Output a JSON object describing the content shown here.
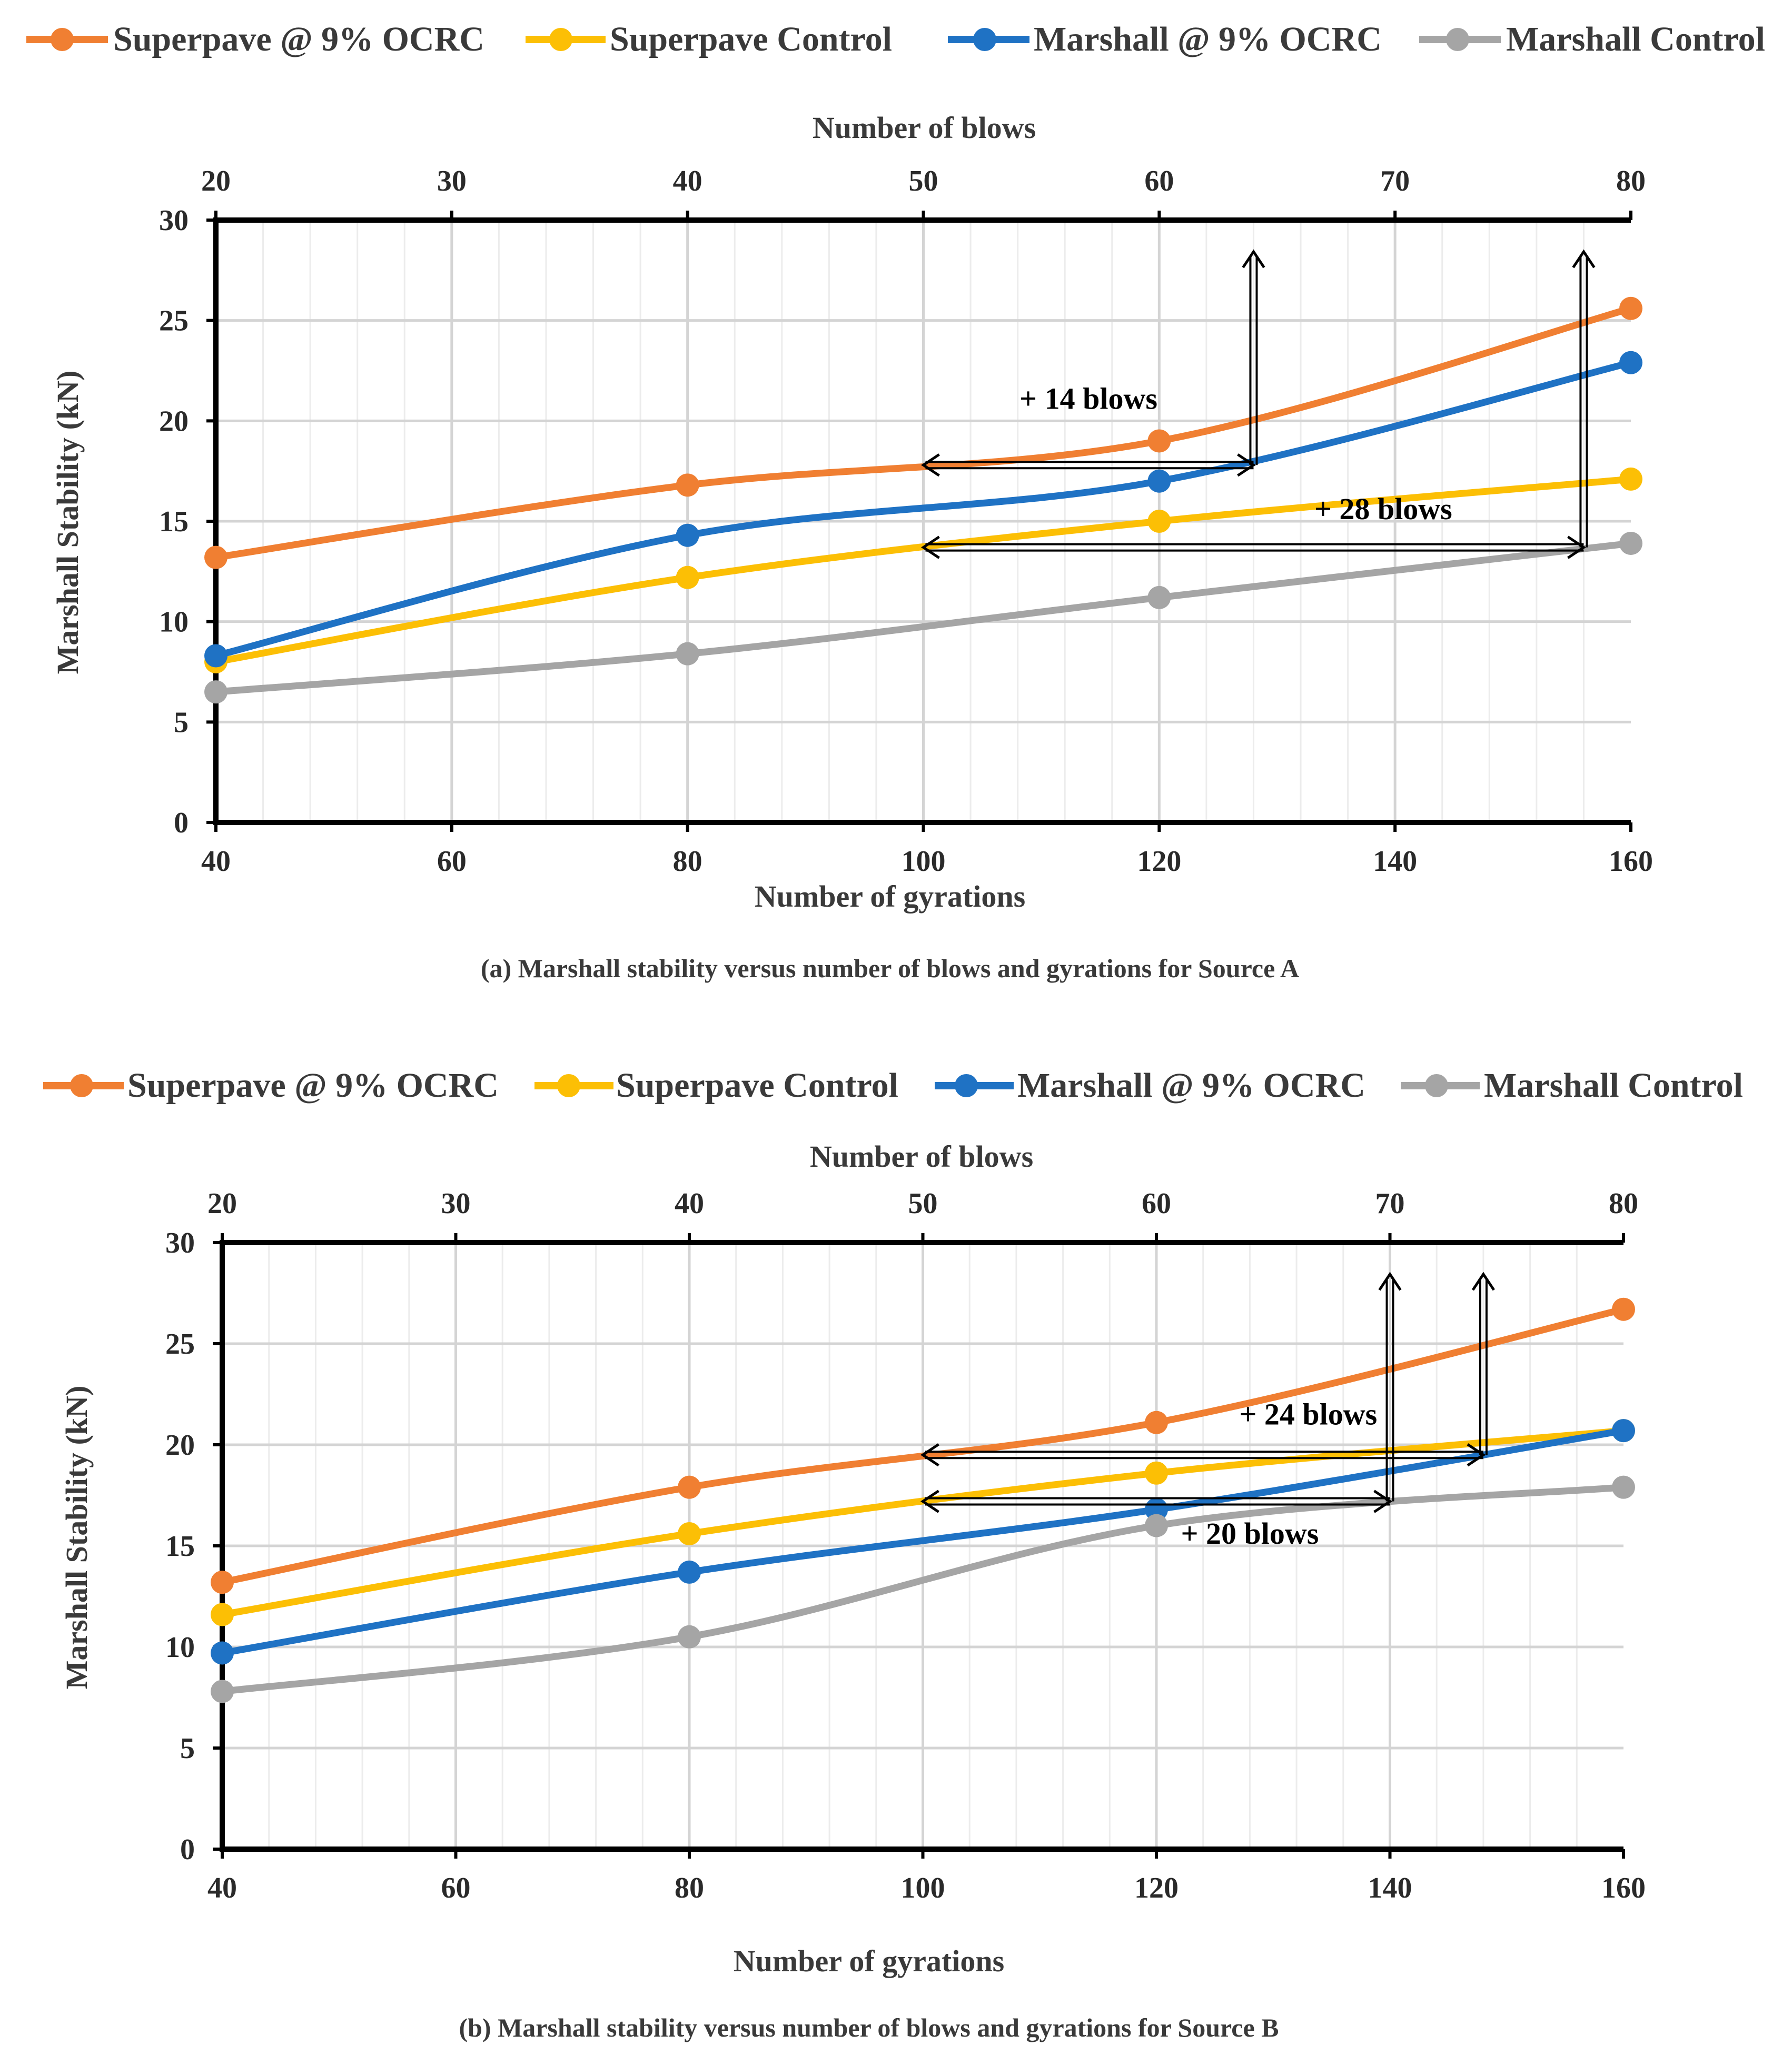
{
  "chart_data": [
    {
      "type": "line",
      "panel": "a",
      "caption": "(a) Marshall stability versus number of blows and gyrations for Source A",
      "xlabel": "Number of gyrations",
      "x2label": "Number of blows",
      "ylabel": "Marshall Stability (kN)",
      "x": [
        40,
        80,
        120,
        160
      ],
      "xlim": [
        40,
        160
      ],
      "x2lim": [
        20,
        80
      ],
      "ylim": [
        0,
        30
      ],
      "x_ticks": [
        "40",
        "60",
        "80",
        "100",
        "120",
        "140",
        "160"
      ],
      "x2_ticks": [
        "20",
        "30",
        "40",
        "50",
        "60",
        "70",
        "80"
      ],
      "y_ticks": [
        "0",
        "5",
        "10",
        "15",
        "20",
        "25",
        "30"
      ],
      "series": [
        {
          "name": "Superpave @ 9% OCRC",
          "color": "#F07F32",
          "values": [
            13.2,
            16.8,
            19.0,
            25.6
          ]
        },
        {
          "name": "Superpave Control",
          "color": "#FCBF05",
          "values": [
            8.0,
            12.2,
            15.0,
            17.1
          ]
        },
        {
          "name": "Marshall @ 9% OCRC",
          "color": "#1F72C4",
          "values": [
            8.3,
            14.3,
            17.0,
            22.9
          ]
        },
        {
          "name": "Marshall Control",
          "color": "#A5A5A5",
          "values": [
            6.5,
            8.4,
            11.2,
            13.9
          ]
        }
      ],
      "annotations": [
        {
          "text": "+ 14 blows",
          "from_x": 100,
          "to_x": 128,
          "y": 17.8,
          "text_x": 114,
          "text_y": 20.6
        },
        {
          "text": "+ 28 blows",
          "from_x": 100,
          "to_x": 156,
          "y": 13.7,
          "text_x": 139,
          "text_y": 15.1
        }
      ]
    },
    {
      "type": "line",
      "panel": "b",
      "caption": "(b) Marshall stability versus number of blows and gyrations for Source B",
      "xlabel": "Number of gyrations",
      "x2label": "Number of blows",
      "ylabel": "Marshall Stability (kN)",
      "x": [
        40,
        80,
        120,
        160
      ],
      "xlim": [
        40,
        160
      ],
      "x2lim": [
        20,
        80
      ],
      "ylim": [
        0,
        30
      ],
      "x_ticks": [
        "40",
        "60",
        "80",
        "100",
        "120",
        "140",
        "160"
      ],
      "x2_ticks": [
        "20",
        "30",
        "40",
        "50",
        "60",
        "70",
        "80"
      ],
      "y_ticks": [
        "0",
        "5",
        "10",
        "15",
        "20",
        "25",
        "30"
      ],
      "series": [
        {
          "name": "Superpave @ 9% OCRC",
          "color": "#F07F32",
          "values": [
            13.2,
            17.9,
            21.1,
            26.7
          ]
        },
        {
          "name": "Superpave Control",
          "color": "#FCBF05",
          "values": [
            11.6,
            15.6,
            18.6,
            20.7
          ]
        },
        {
          "name": "Marshall @ 9% OCRC",
          "color": "#1F72C4",
          "values": [
            9.7,
            13.7,
            16.8,
            20.7
          ]
        },
        {
          "name": "Marshall Control",
          "color": "#A5A5A5",
          "values": [
            7.8,
            10.5,
            16.0,
            17.9
          ]
        }
      ],
      "annotations": [
        {
          "text": "+ 24 blows",
          "from_x": 100,
          "to_x": 148,
          "y": 19.5,
          "text_x": 133,
          "text_y": 21.0
        },
        {
          "text": "+ 20 blows",
          "from_x": 100,
          "to_x": 140,
          "y": 17.2,
          "text_x": 128,
          "text_y": 15.1
        }
      ]
    }
  ]
}
